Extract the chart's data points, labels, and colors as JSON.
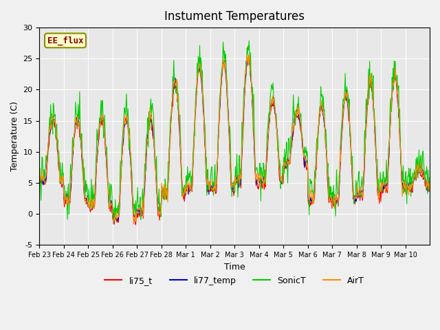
{
  "title": "Instument Temperatures",
  "xlabel": "Time",
  "ylabel": "Temperature (C)",
  "ylim": [
    -5,
    30
  ],
  "annotation_text": "EE_flux",
  "annotation_color": "#8B0000",
  "annotation_bg": "#FFFFCC",
  "annotation_border": "#8B8B00",
  "bg_color": "#E8E8E8",
  "series_colors": {
    "li75_t": "#FF0000",
    "li77_temp": "#0000CC",
    "SonicT": "#00CC00",
    "AirT": "#FF8C00"
  },
  "x_tick_labels": [
    "Feb 23",
    "Feb 24",
    "Feb 25",
    "Feb 26",
    "Feb 27",
    "Feb 28",
    "Mar 1",
    "Mar 2",
    "Mar 3",
    "Mar 4",
    "Mar 5",
    "Mar 6",
    "Mar 7",
    "Mar 8",
    "Mar 9",
    "Mar 10"
  ],
  "n_days": 16,
  "points_per_day": 48
}
